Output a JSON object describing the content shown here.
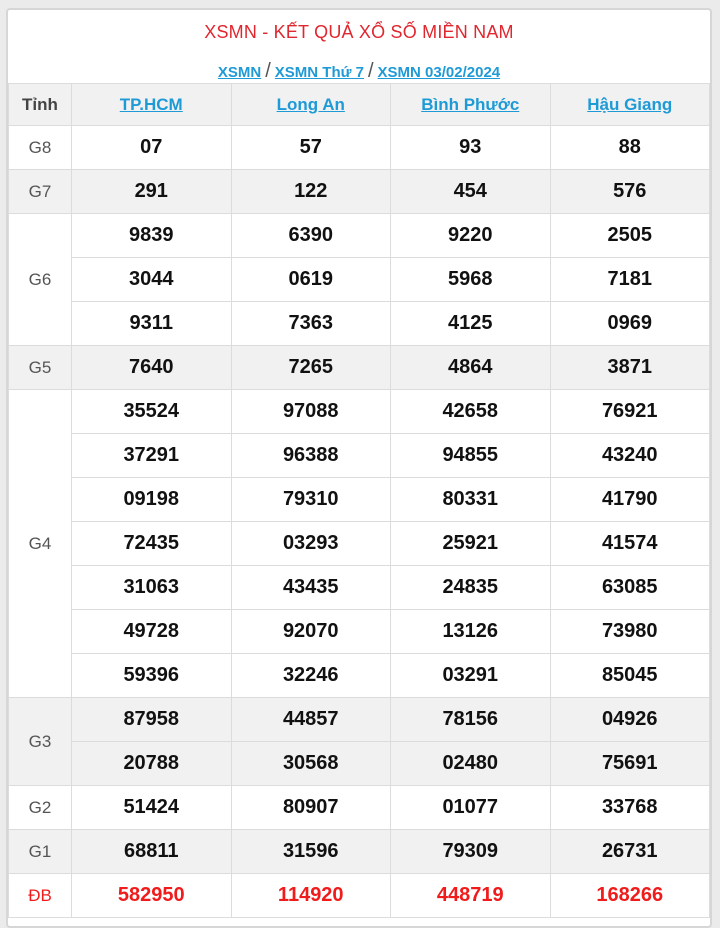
{
  "title": "XSMN - KẾT QUẢ XỔ SỐ MIỀN NAM",
  "breadcrumb": [
    "XSMN",
    "XSMN Thứ 7",
    "XSMN 03/02/2024"
  ],
  "breadcrumb_separator": "/",
  "table": {
    "header_label": "Tỉnh",
    "provinces": [
      "TP.HCM",
      "Long An",
      "Bình Phước",
      "Hậu Giang"
    ],
    "prizes": [
      {
        "label": "G8",
        "rows": [
          [
            "07",
            "57",
            "93",
            "88"
          ]
        ]
      },
      {
        "label": "G7",
        "rows": [
          [
            "291",
            "122",
            "454",
            "576"
          ]
        ]
      },
      {
        "label": "G6",
        "rows": [
          [
            "9839",
            "6390",
            "9220",
            "2505"
          ],
          [
            "3044",
            "0619",
            "5968",
            "7181"
          ],
          [
            "9311",
            "7363",
            "4125",
            "0969"
          ]
        ]
      },
      {
        "label": "G5",
        "rows": [
          [
            "7640",
            "7265",
            "4864",
            "3871"
          ]
        ]
      },
      {
        "label": "G4",
        "rows": [
          [
            "35524",
            "97088",
            "42658",
            "76921"
          ],
          [
            "37291",
            "96388",
            "94855",
            "43240"
          ],
          [
            "09198",
            "79310",
            "80331",
            "41790"
          ],
          [
            "72435",
            "03293",
            "25921",
            "41574"
          ],
          [
            "31063",
            "43435",
            "24835",
            "63085"
          ],
          [
            "49728",
            "92070",
            "13126",
            "73980"
          ],
          [
            "59396",
            "32246",
            "03291",
            "85045"
          ]
        ]
      },
      {
        "label": "G3",
        "rows": [
          [
            "87958",
            "44857",
            "78156",
            "04926"
          ],
          [
            "20788",
            "30568",
            "02480",
            "75691"
          ]
        ]
      },
      {
        "label": "G2",
        "rows": [
          [
            "51424",
            "80907",
            "01077",
            "33768"
          ]
        ]
      },
      {
        "label": "G1",
        "rows": [
          [
            "68811",
            "31596",
            "79309",
            "26731"
          ]
        ]
      },
      {
        "label": "ĐB",
        "rows": [
          [
            "582950",
            "114920",
            "448719",
            "168266"
          ]
        ]
      }
    ]
  },
  "colors": {
    "title": "#e0262e",
    "link": "#1e9ad6",
    "special_prize": "#f01b1b"
  }
}
